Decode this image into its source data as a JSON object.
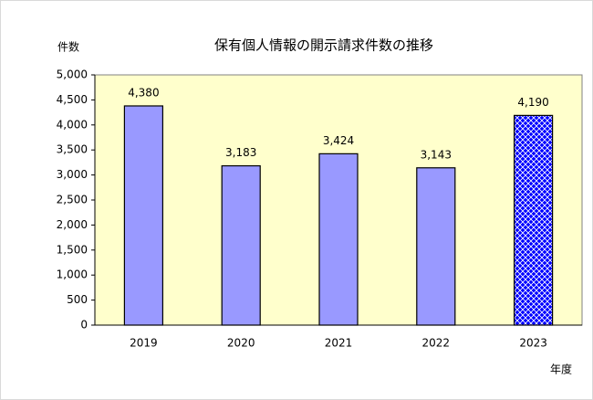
{
  "chart_data": {
    "type": "bar",
    "title": "保有個人情報の開示請求件数の推移",
    "y_label": "件数",
    "x_label": "年度",
    "categories": [
      "2019",
      "2020",
      "2021",
      "2022",
      "2023"
    ],
    "values": [
      4380,
      3183,
      3424,
      3143,
      4190
    ],
    "value_labels": [
      "4,380",
      "3,183",
      "3,424",
      "3,143",
      "4,190"
    ],
    "colors": [
      "#9999ff",
      "#9999ff",
      "#9999ff",
      "#9999ff",
      "#0000ff"
    ],
    "hatched": [
      false,
      false,
      false,
      false,
      true
    ],
    "ylim": [
      0,
      5000
    ],
    "yticks": [
      0,
      500,
      {
        "value": 1000,
        "label": "1,000"
      },
      {
        "value": 1500,
        "label": "1,500"
      },
      {
        "value": 2000,
        "label": "2,000"
      },
      {
        "value": 2500,
        "label": "2,500"
      },
      {
        "value": 3000,
        "label": "3,000"
      },
      {
        "value": 3500,
        "label": "3,500"
      },
      {
        "value": 4000,
        "label": "4,000"
      },
      {
        "value": 4500,
        "label": "4,500"
      },
      {
        "value": 5000,
        "label": "5,000"
      }
    ],
    "plot_background": "#ffffcc"
  }
}
